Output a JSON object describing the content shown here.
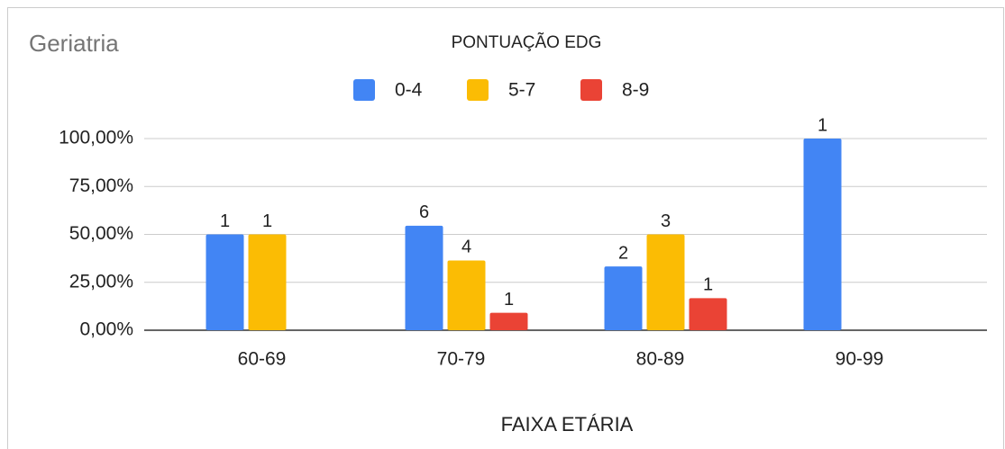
{
  "chart_data": {
    "type": "bar",
    "panel_title": "Geriatria",
    "title": "PONTUAÇÃO EDG",
    "x_label": "FAIXA ETÁRIA",
    "categories": [
      "60-69",
      "70-79",
      "80-89",
      "90-99"
    ],
    "series": [
      {
        "name": "0-4",
        "color": "#4285f4",
        "values": [
          50,
          54.5,
          33.3,
          100
        ],
        "counts": [
          1,
          6,
          2,
          1
        ]
      },
      {
        "name": "5-7",
        "color": "#fbbc04",
        "values": [
          50,
          36.4,
          50,
          null
        ],
        "counts": [
          1,
          4,
          3,
          null
        ]
      },
      {
        "name": "8-9",
        "color": "#ea4335",
        "values": [
          null,
          9.1,
          16.7,
          null
        ],
        "counts": [
          null,
          1,
          1,
          null
        ]
      }
    ],
    "ylim": [
      0,
      100
    ],
    "yticks": [
      {
        "value": 0,
        "label": "0,00%"
      },
      {
        "value": 25,
        "label": "25,00%"
      },
      {
        "value": 50,
        "label": "50,00%"
      },
      {
        "value": 75,
        "label": "75,00%"
      },
      {
        "value": 100,
        "label": "100,00%"
      }
    ],
    "grid": true,
    "legend": "top"
  }
}
